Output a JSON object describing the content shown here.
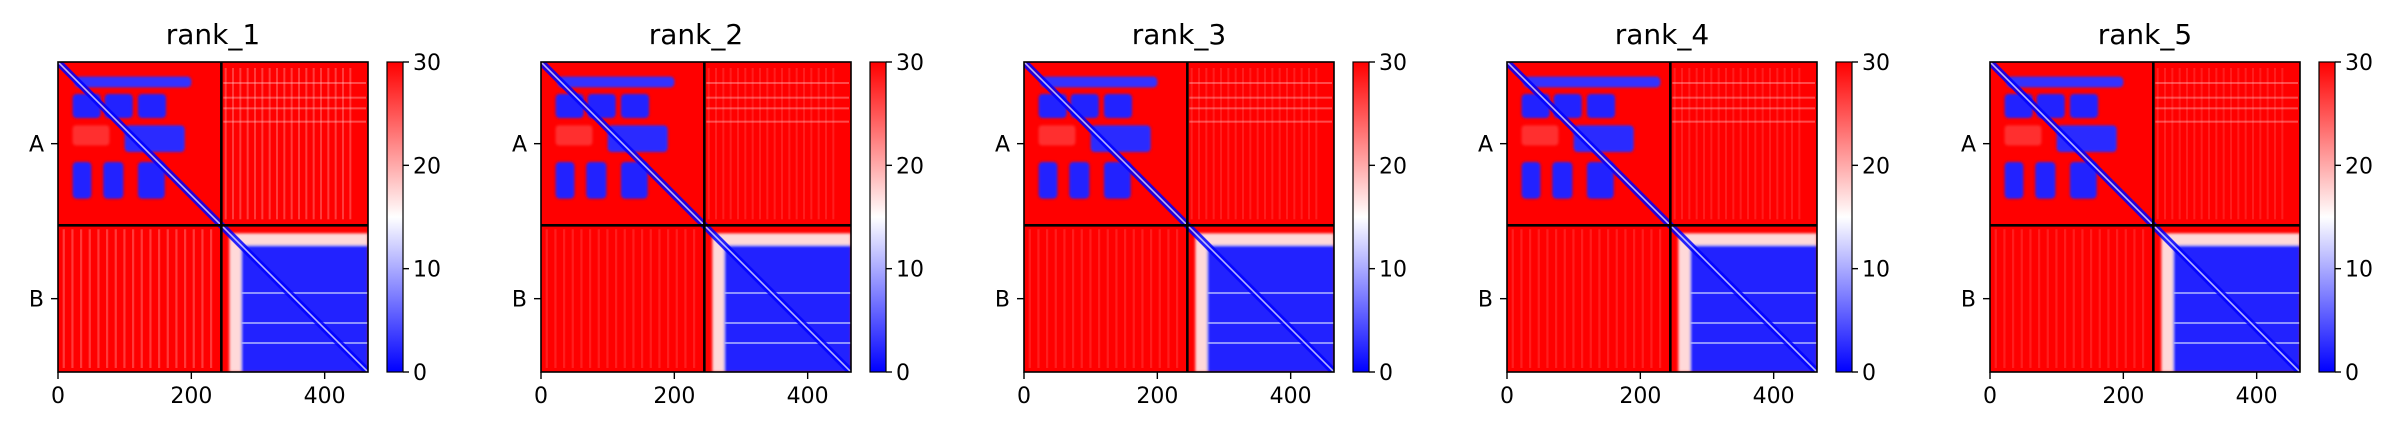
{
  "chart_data": [
    {
      "type": "heatmap",
      "title": "rank_1",
      "x_ticks": [
        0,
        200,
        400
      ],
      "y_tick_labels": [
        "A",
        "B"
      ],
      "chain_boundary": 245,
      "x_range": [
        0,
        465
      ],
      "colorbar": {
        "min": 0,
        "max": 30,
        "ticks": [
          0,
          10,
          20,
          30
        ],
        "colors": [
          "#0000ff",
          "#ffffff",
          "#ff0000"
        ]
      },
      "variant": {
        "lower_left_stripes": true,
        "top_block_width": 200
      }
    },
    {
      "type": "heatmap",
      "title": "rank_2",
      "x_ticks": [
        0,
        200,
        400
      ],
      "y_tick_labels": [
        "A",
        "B"
      ],
      "chain_boundary": 245,
      "x_range": [
        0,
        465
      ],
      "colorbar": {
        "min": 0,
        "max": 30,
        "ticks": [
          0,
          10,
          20,
          30
        ],
        "colors": [
          "#0000ff",
          "#ffffff",
          "#ff0000"
        ]
      },
      "variant": {
        "lower_left_stripes": false,
        "top_block_width": 200
      }
    },
    {
      "type": "heatmap",
      "title": "rank_3",
      "x_ticks": [
        0,
        200,
        400
      ],
      "y_tick_labels": [
        "A",
        "B"
      ],
      "chain_boundary": 245,
      "x_range": [
        0,
        465
      ],
      "colorbar": {
        "min": 0,
        "max": 30,
        "ticks": [
          0,
          10,
          20,
          30
        ],
        "colors": [
          "#0000ff",
          "#ffffff",
          "#ff0000"
        ]
      },
      "variant": {
        "lower_left_stripes": false,
        "top_block_width": 200
      }
    },
    {
      "type": "heatmap",
      "title": "rank_4",
      "x_ticks": [
        0,
        200,
        400
      ],
      "y_tick_labels": [
        "A",
        "B"
      ],
      "chain_boundary": 245,
      "x_range": [
        0,
        465
      ],
      "colorbar": {
        "min": 0,
        "max": 30,
        "ticks": [
          0,
          10,
          20,
          30
        ],
        "colors": [
          "#0000ff",
          "#ffffff",
          "#ff0000"
        ]
      },
      "variant": {
        "lower_left_stripes": false,
        "top_block_width": 230
      }
    },
    {
      "type": "heatmap",
      "title": "rank_5",
      "x_ticks": [
        0,
        200,
        400
      ],
      "y_tick_labels": [
        "A",
        "B"
      ],
      "chain_boundary": 245,
      "x_range": [
        0,
        465
      ],
      "colorbar": {
        "min": 0,
        "max": 30,
        "ticks": [
          0,
          10,
          20,
          30
        ],
        "colors": [
          "#0000ff",
          "#ffffff",
          "#ff0000"
        ]
      },
      "variant": {
        "lower_left_stripes": false,
        "top_block_width": 200
      }
    }
  ]
}
